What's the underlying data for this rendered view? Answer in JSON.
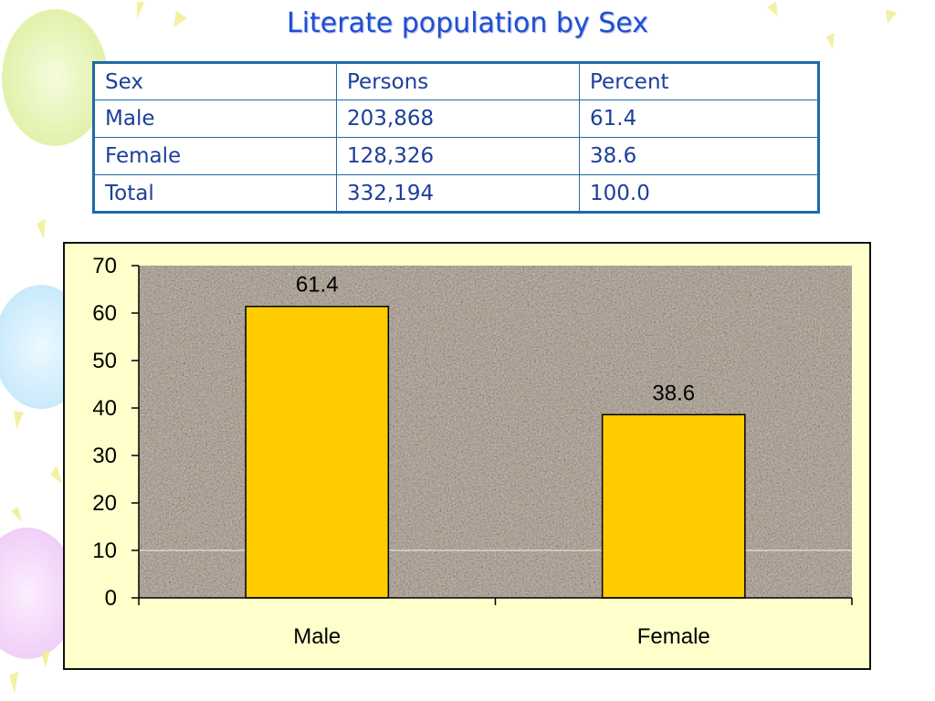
{
  "slide": {
    "title": "Literate population by Sex"
  },
  "table": {
    "header": [
      "Sex",
      "Persons",
      "Percent"
    ],
    "rows": [
      [
        "Male",
        "203,868",
        "61.4"
      ],
      [
        "Female",
        "128,326",
        "38.6"
      ],
      [
        "Total",
        "332,194",
        "100.0"
      ]
    ]
  },
  "colors": {
    "title": "#1f4fd1",
    "table_border": "#1f6aa8",
    "table_text": "#1c3f99",
    "chart_background": "#ffffcc",
    "plot_texture": "#8c8278",
    "bar_fill": "#ffcc00"
  },
  "chart_data": {
    "type": "bar",
    "categories": [
      "Male",
      "Female"
    ],
    "values": [
      61.4,
      38.6
    ],
    "data_labels": [
      "61.4",
      "38.6"
    ],
    "ylim": [
      0,
      70
    ],
    "yticks": [
      0,
      10,
      20,
      30,
      40,
      50,
      60,
      70
    ],
    "title": "",
    "xlabel": "",
    "ylabel": "",
    "grid": false,
    "legend": "none"
  }
}
